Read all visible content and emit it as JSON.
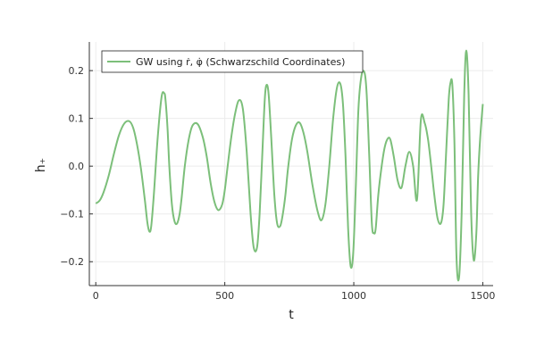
{
  "chart_data": {
    "type": "line",
    "title": "",
    "xlabel": "t",
    "ylabel": "h₊",
    "xlim": [
      -25,
      1540
    ],
    "ylim": [
      -0.25,
      0.26
    ],
    "xticks": [
      0,
      500,
      1000,
      1500
    ],
    "xtick_labels": [
      "0",
      "500",
      "1000",
      "1500"
    ],
    "yticks": [
      -0.2,
      -0.1,
      0.0,
      0.1,
      0.2
    ],
    "ytick_labels": [
      "−0.2",
      "−0.1",
      "0.0",
      "0.1",
      "0.2"
    ],
    "grid": true,
    "legend_position": "top-left",
    "series": [
      {
        "name": "GW using ṙ, φ̇ (Schwarzschild Coordinates)",
        "color": "#7cbf7a",
        "x": [
          0,
          15,
          30,
          50,
          70,
          90,
          110,
          130,
          145,
          160,
          175,
          190,
          200,
          208,
          215,
          225,
          240,
          255,
          265,
          270,
          278,
          285,
          295,
          305,
          315,
          325,
          333,
          345,
          360,
          375,
          395,
          415,
          430,
          445,
          460,
          475,
          490,
          500,
          510,
          525,
          540,
          555,
          570,
          585,
          600,
          612,
          625,
          635,
          645,
          655,
          662,
          670,
          680,
          692,
          703,
          715,
          725,
          735,
          745,
          760,
          775,
          790,
          805,
          820,
          840,
          860,
          875,
          890,
          905,
          920,
          935,
          948,
          958,
          968,
          978,
          988,
          998,
          1008,
          1018,
          1030,
          1042,
          1050,
          1060,
          1070,
          1078,
          1085,
          1095,
          1108,
          1120,
          1132,
          1142,
          1155,
          1170,
          1185,
          1200,
          1215,
          1230,
          1245,
          1260,
          1275,
          1288,
          1300,
          1312,
          1325,
          1338,
          1348,
          1358,
          1368,
          1375,
          1382,
          1390,
          1398,
          1408,
          1418,
          1428,
          1436,
          1445,
          1455,
          1465,
          1475,
          1482,
          1490,
          1500
        ],
        "y": [
          -0.078,
          -0.072,
          -0.055,
          -0.02,
          0.025,
          0.065,
          0.089,
          0.094,
          0.08,
          0.045,
          -0.005,
          -0.07,
          -0.118,
          -0.137,
          -0.125,
          -0.06,
          0.06,
          0.145,
          0.153,
          0.14,
          0.08,
          0.0,
          -0.08,
          -0.115,
          -0.12,
          -0.1,
          -0.065,
          0.0,
          0.055,
          0.085,
          0.088,
          0.06,
          0.02,
          -0.035,
          -0.075,
          -0.092,
          -0.08,
          -0.05,
          -0.005,
          0.06,
          0.11,
          0.138,
          0.12,
          0.03,
          -0.1,
          -0.17,
          -0.17,
          -0.1,
          0.02,
          0.14,
          0.17,
          0.15,
          0.06,
          -0.06,
          -0.12,
          -0.125,
          -0.1,
          -0.06,
          -0.005,
          0.055,
          0.085,
          0.091,
          0.07,
          0.03,
          -0.04,
          -0.095,
          -0.113,
          -0.08,
          0.0,
          0.1,
          0.165,
          0.172,
          0.13,
          0.02,
          -0.13,
          -0.21,
          -0.18,
          -0.04,
          0.12,
          0.19,
          0.195,
          0.15,
          0.02,
          -0.12,
          -0.14,
          -0.13,
          -0.06,
          0.0,
          0.04,
          0.058,
          0.055,
          0.02,
          -0.03,
          -0.045,
          0.0,
          0.03,
          0.0,
          -0.07,
          0.097,
          0.09,
          0.055,
          0.0,
          -0.06,
          -0.11,
          -0.119,
          -0.08,
          0.03,
          0.14,
          0.175,
          0.17,
          0.05,
          -0.19,
          -0.233,
          -0.1,
          0.15,
          0.242,
          0.15,
          -0.1,
          -0.197,
          -0.14,
          -0.02,
          0.06,
          0.13
        ]
      }
    ]
  }
}
